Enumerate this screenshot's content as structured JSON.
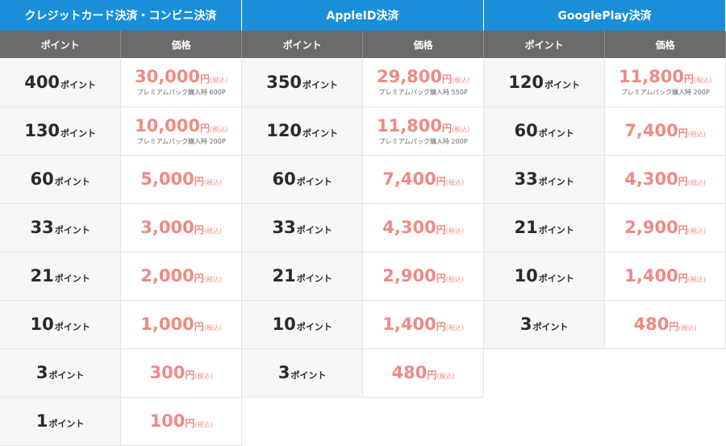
{
  "tables": [
    {
      "title": "クレジットカード決済・コンビニ決済",
      "col_points": "ポイント",
      "col_price": "価格",
      "rows": [
        {
          "points": "400",
          "unit": "ポイント",
          "price": "30,000",
          "yen": "円",
          "tax": "(税込)",
          "bonus": "プレミアムパック購入時 600P"
        },
        {
          "points": "130",
          "unit": "ポイント",
          "price": "10,000",
          "yen": "円",
          "tax": "(税込)",
          "bonus": "プレミアムパック購入時 200P"
        },
        {
          "points": "60",
          "unit": "ポイント",
          "price": "5,000",
          "yen": "円",
          "tax": "(税込)",
          "bonus": ""
        },
        {
          "points": "33",
          "unit": "ポイント",
          "price": "3,000",
          "yen": "円",
          "tax": "(税込)",
          "bonus": ""
        },
        {
          "points": "21",
          "unit": "ポイント",
          "price": "2,000",
          "yen": "円",
          "tax": "(税込)",
          "bonus": ""
        },
        {
          "points": "10",
          "unit": "ポイント",
          "price": "1,000",
          "yen": "円",
          "tax": "(税込)",
          "bonus": ""
        },
        {
          "points": "3",
          "unit": "ポイント",
          "price": "300",
          "yen": "円",
          "tax": "(税込)",
          "bonus": ""
        },
        {
          "points": "1",
          "unit": "ポイント",
          "price": "100",
          "yen": "円",
          "tax": "(税込)",
          "bonus": ""
        }
      ]
    },
    {
      "title": "AppleID決済",
      "col_points": "ポイント",
      "col_price": "価格",
      "rows": [
        {
          "points": "350",
          "unit": "ポイント",
          "price": "29,800",
          "yen": "円",
          "tax": "(税込)",
          "bonus": "プレミアムパック購入時 550P"
        },
        {
          "points": "120",
          "unit": "ポイント",
          "price": "11,800",
          "yen": "円",
          "tax": "(税込)",
          "bonus": "プレミアムパック購入時 200P"
        },
        {
          "points": "60",
          "unit": "ポイント",
          "price": "7,400",
          "yen": "円",
          "tax": "(税込)",
          "bonus": ""
        },
        {
          "points": "33",
          "unit": "ポイント",
          "price": "4,300",
          "yen": "円",
          "tax": "(税込)",
          "bonus": ""
        },
        {
          "points": "21",
          "unit": "ポイント",
          "price": "2,900",
          "yen": "円",
          "tax": "(税込)",
          "bonus": ""
        },
        {
          "points": "10",
          "unit": "ポイント",
          "price": "1,400",
          "yen": "円",
          "tax": "(税込)",
          "bonus": ""
        },
        {
          "points": "3",
          "unit": "ポイント",
          "price": "480",
          "yen": "円",
          "tax": "(税込)",
          "bonus": ""
        }
      ]
    },
    {
      "title": "GooglePlay決済",
      "col_points": "ポイント",
      "col_price": "価格",
      "rows": [
        {
          "points": "120",
          "unit": "ポイント",
          "price": "11,800",
          "yen": "円",
          "tax": "(税込)",
          "bonus": "プレミアムパック購入時 200P"
        },
        {
          "points": "60",
          "unit": "ポイント",
          "price": "7,400",
          "yen": "円",
          "tax": "(税込)",
          "bonus": ""
        },
        {
          "points": "33",
          "unit": "ポイント",
          "price": "4,300",
          "yen": "円",
          "tax": "(税込)",
          "bonus": ""
        },
        {
          "points": "21",
          "unit": "ポイント",
          "price": "2,900",
          "yen": "円",
          "tax": "(税込)",
          "bonus": ""
        },
        {
          "points": "10",
          "unit": "ポイント",
          "price": "1,400",
          "yen": "円",
          "tax": "(税込)",
          "bonus": ""
        },
        {
          "points": "3",
          "unit": "ポイント",
          "price": "480",
          "yen": "円",
          "tax": "(税込)",
          "bonus": ""
        }
      ]
    }
  ],
  "colors": {
    "header_blue": "#1a8fd8",
    "subheader_gray": "#6b6b6b",
    "price_pink": "#ef8a84"
  }
}
